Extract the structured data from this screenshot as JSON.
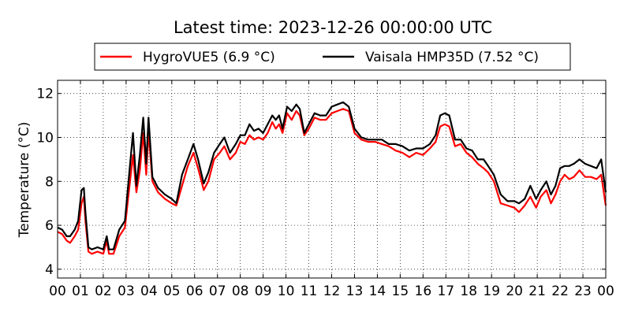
{
  "chart_data": {
    "type": "line",
    "title": "Latest time: 2023-12-26 00:00:00 UTC",
    "xlabel": "",
    "ylabel": "Temperature (°C)",
    "xlim": [
      0,
      24
    ],
    "ylim": [
      3.6,
      12.6
    ],
    "grid": true,
    "legend_position": "top",
    "x_tick_labels": [
      "00",
      "01",
      "02",
      "03",
      "04",
      "05",
      "06",
      "07",
      "08",
      "09",
      "10",
      "11",
      "12",
      "13",
      "14",
      "15",
      "16",
      "17",
      "18",
      "19",
      "20",
      "21",
      "22",
      "23",
      "00"
    ],
    "y_ticks": [
      4,
      6,
      8,
      10,
      12
    ],
    "series": [
      {
        "name": "HygroVUE5 (6.9 °C)",
        "color": "#ff0000",
        "x": [
          0,
          0.2,
          0.4,
          0.55,
          0.75,
          0.9,
          1.05,
          1.15,
          1.22,
          1.35,
          1.5,
          1.75,
          2.0,
          2.15,
          2.25,
          2.45,
          2.7,
          2.95,
          3.15,
          3.3,
          3.45,
          3.6,
          3.75,
          3.88,
          3.98,
          4.15,
          4.4,
          4.7,
          5.0,
          5.2,
          5.45,
          5.7,
          5.95,
          6.15,
          6.4,
          6.6,
          6.85,
          7.1,
          7.3,
          7.55,
          7.8,
          8.0,
          8.2,
          8.4,
          8.6,
          8.8,
          9.0,
          9.2,
          9.4,
          9.55,
          9.7,
          9.85,
          10.05,
          10.25,
          10.45,
          10.6,
          10.8,
          11.0,
          11.25,
          11.5,
          11.75,
          12.0,
          12.25,
          12.5,
          12.75,
          13.0,
          13.3,
          13.6,
          13.9,
          14.2,
          14.5,
          14.8,
          15.1,
          15.4,
          15.7,
          16.0,
          16.3,
          16.55,
          16.75,
          16.95,
          17.15,
          17.4,
          17.65,
          17.9,
          18.15,
          18.4,
          18.65,
          18.85,
          19.1,
          19.4,
          19.7,
          20.0,
          20.2,
          20.45,
          20.7,
          20.95,
          21.15,
          21.4,
          21.6,
          21.8,
          22.0,
          22.2,
          22.4,
          22.6,
          22.85,
          23.1,
          23.35,
          23.6,
          23.8,
          24.0
        ],
        "y": [
          5.7,
          5.6,
          5.3,
          5.2,
          5.5,
          5.8,
          7.0,
          7.3,
          6.2,
          4.8,
          4.7,
          4.8,
          4.7,
          5.3,
          4.7,
          4.7,
          5.5,
          5.9,
          7.8,
          9.2,
          7.5,
          8.5,
          10.2,
          8.3,
          10.3,
          8.0,
          7.5,
          7.2,
          7.0,
          6.9,
          7.8,
          8.7,
          9.3,
          8.6,
          7.6,
          8.0,
          9.0,
          9.3,
          9.6,
          9.0,
          9.3,
          9.8,
          9.7,
          10.1,
          9.9,
          10.0,
          9.9,
          10.2,
          10.7,
          10.4,
          10.6,
          10.2,
          11.1,
          10.8,
          11.2,
          11.0,
          10.1,
          10.4,
          10.9,
          10.8,
          10.8,
          11.1,
          11.2,
          11.3,
          11.2,
          10.2,
          9.9,
          9.8,
          9.8,
          9.7,
          9.6,
          9.4,
          9.3,
          9.1,
          9.3,
          9.2,
          9.5,
          9.8,
          10.5,
          10.6,
          10.5,
          9.6,
          9.7,
          9.3,
          9.1,
          8.8,
          8.6,
          8.4,
          8.0,
          7.0,
          6.9,
          6.8,
          6.6,
          6.9,
          7.3,
          6.8,
          7.3,
          7.6,
          7.0,
          7.4,
          8.0,
          8.3,
          8.1,
          8.2,
          8.5,
          8.2,
          8.2,
          8.1,
          8.3,
          6.9
        ]
      },
      {
        "name": "Vaisala HMP35D (7.52 °C)",
        "color": "#000000",
        "x": [
          0,
          0.2,
          0.4,
          0.55,
          0.75,
          0.9,
          1.05,
          1.15,
          1.22,
          1.35,
          1.5,
          1.75,
          2.0,
          2.15,
          2.25,
          2.45,
          2.7,
          2.95,
          3.15,
          3.3,
          3.45,
          3.6,
          3.75,
          3.88,
          3.98,
          4.15,
          4.4,
          4.7,
          5.0,
          5.2,
          5.45,
          5.7,
          5.95,
          6.15,
          6.4,
          6.6,
          6.85,
          7.1,
          7.3,
          7.55,
          7.8,
          8.0,
          8.2,
          8.4,
          8.6,
          8.8,
          9.0,
          9.2,
          9.4,
          9.55,
          9.7,
          9.85,
          10.05,
          10.25,
          10.45,
          10.6,
          10.8,
          11.0,
          11.25,
          11.5,
          11.75,
          12.0,
          12.25,
          12.5,
          12.75,
          13.0,
          13.3,
          13.6,
          13.9,
          14.2,
          14.5,
          14.8,
          15.1,
          15.4,
          15.7,
          16.0,
          16.3,
          16.55,
          16.75,
          16.95,
          17.15,
          17.4,
          17.65,
          17.9,
          18.15,
          18.4,
          18.65,
          18.85,
          19.1,
          19.4,
          19.7,
          20.0,
          20.2,
          20.45,
          20.7,
          20.95,
          21.15,
          21.4,
          21.6,
          21.8,
          22.0,
          22.2,
          22.4,
          22.6,
          22.85,
          23.1,
          23.35,
          23.6,
          23.8,
          24.0
        ],
        "y": [
          5.9,
          5.8,
          5.5,
          5.5,
          5.8,
          6.2,
          7.6,
          7.7,
          6.6,
          5.0,
          4.9,
          5.0,
          4.9,
          5.5,
          4.9,
          4.9,
          5.8,
          6.2,
          8.5,
          10.2,
          7.8,
          9.2,
          10.9,
          8.8,
          10.9,
          8.2,
          7.7,
          7.4,
          7.2,
          7.0,
          8.3,
          9.0,
          9.7,
          9.0,
          7.9,
          8.4,
          9.3,
          9.7,
          10.0,
          9.3,
          9.7,
          10.1,
          10.1,
          10.6,
          10.3,
          10.4,
          10.2,
          10.6,
          11.0,
          10.8,
          11.0,
          10.4,
          11.4,
          11.2,
          11.5,
          11.3,
          10.2,
          10.6,
          11.1,
          11.0,
          11.0,
          11.4,
          11.5,
          11.6,
          11.4,
          10.4,
          10.0,
          9.9,
          9.9,
          9.9,
          9.7,
          9.7,
          9.6,
          9.4,
          9.5,
          9.5,
          9.7,
          10.1,
          11.0,
          11.1,
          11.0,
          9.9,
          9.9,
          9.5,
          9.4,
          9.0,
          9.0,
          8.7,
          8.3,
          7.4,
          7.1,
          7.1,
          7.0,
          7.2,
          7.8,
          7.2,
          7.6,
          8.0,
          7.4,
          7.8,
          8.6,
          8.7,
          8.7,
          8.8,
          9.0,
          8.8,
          8.7,
          8.6,
          9.0,
          7.5
        ]
      }
    ]
  }
}
